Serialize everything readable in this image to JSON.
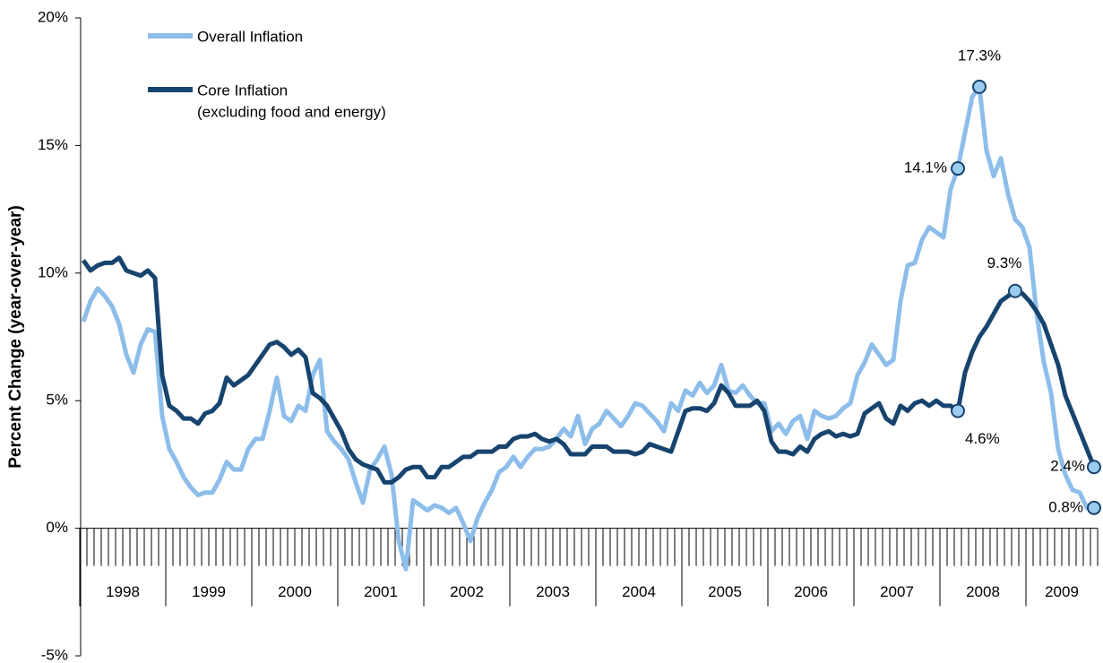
{
  "chart_data": {
    "type": "line",
    "y_label": "Percent Change (year-over-year)",
    "year_labels": [
      "1998",
      "1999",
      "2000",
      "2001",
      "2002",
      "2003",
      "2004",
      "2005",
      "2006",
      "2007",
      "2008",
      "2009"
    ],
    "ylim": [
      -5,
      20
    ],
    "yticks": [
      {
        "value": -5,
        "label": "-5%"
      },
      {
        "value": 0,
        "label": "0%"
      },
      {
        "value": 5,
        "label": "5%"
      },
      {
        "value": 10,
        "label": "10%"
      },
      {
        "value": 15,
        "label": "15%"
      },
      {
        "value": 20,
        "label": "20%"
      }
    ],
    "legend": "upper left",
    "series": [
      {
        "name": "Overall Inflation",
        "color": "#8dbdea",
        "values": [
          8.1,
          8.9,
          9.4,
          9.1,
          8.7,
          8.0,
          6.8,
          6.1,
          7.2,
          7.8,
          7.7,
          4.4,
          3.1,
          2.6,
          2.0,
          1.6,
          1.3,
          1.4,
          1.4,
          1.9,
          2.6,
          2.3,
          2.3,
          3.1,
          3.5,
          3.5,
          4.6,
          5.9,
          4.4,
          4.2,
          4.8,
          4.6,
          6.0,
          6.6,
          3.8,
          3.4,
          3.1,
          2.7,
          1.8,
          1.0,
          2.3,
          2.7,
          3.2,
          2.1,
          -0.5,
          -1.6,
          1.1,
          0.9,
          0.7,
          0.9,
          0.8,
          0.6,
          0.8,
          0.2,
          -0.5,
          0.4,
          1.0,
          1.5,
          2.2,
          2.4,
          2.8,
          2.4,
          2.8,
          3.1,
          3.1,
          3.2,
          3.5,
          3.9,
          3.6,
          4.4,
          3.3,
          3.9,
          4.1,
          4.6,
          4.3,
          4.0,
          4.4,
          4.9,
          4.8,
          4.5,
          4.2,
          3.8,
          4.9,
          4.6,
          5.4,
          5.2,
          5.7,
          5.3,
          5.6,
          6.4,
          5.4,
          5.3,
          5.6,
          5.2,
          4.9,
          4.9,
          3.8,
          4.1,
          3.7,
          4.2,
          4.4,
          3.5,
          4.6,
          4.4,
          4.3,
          4.4,
          4.7,
          4.9,
          6.0,
          6.5,
          7.2,
          6.8,
          6.4,
          6.6,
          8.9,
          10.3,
          10.4,
          11.3,
          11.8,
          11.6,
          11.4,
          13.3,
          14.1,
          15.5,
          16.9,
          17.3,
          14.8,
          13.8,
          14.5,
          13.1,
          12.1,
          11.8,
          11.0,
          8.4,
          6.5,
          5.3,
          3.1,
          2.1,
          1.5,
          1.4,
          0.8,
          0.8
        ],
        "value_labels": [
          null,
          null,
          null,
          null,
          null,
          null,
          null,
          null,
          null,
          null,
          null,
          null,
          null,
          null,
          null,
          null,
          null,
          null,
          null,
          null,
          null,
          null,
          null,
          null,
          null,
          null,
          null,
          null,
          null,
          null,
          null,
          null,
          null,
          null,
          null,
          null,
          null,
          null,
          null,
          null,
          null,
          null,
          null,
          null,
          null,
          null,
          null,
          null,
          null,
          null,
          null,
          null,
          null,
          null,
          null,
          null,
          null,
          null,
          null,
          null,
          null,
          null,
          null,
          null,
          null,
          null,
          null,
          null,
          null,
          null,
          null,
          null,
          null,
          null,
          null,
          null,
          null,
          null,
          null,
          null,
          null,
          null,
          null,
          null,
          null,
          null,
          null,
          null,
          null,
          null,
          null,
          null,
          null,
          null,
          null,
          null,
          null,
          null,
          null,
          null,
          null,
          null,
          null,
          null,
          null,
          null,
          null,
          null,
          null,
          null,
          null,
          null,
          null,
          null,
          null,
          null,
          null,
          null,
          null,
          null,
          null,
          null,
          "14.1%",
          null,
          null,
          "17.3%",
          null,
          null,
          null,
          null,
          null,
          null,
          null,
          null,
          null,
          null,
          null,
          null,
          null,
          null,
          null,
          "0.8%"
        ]
      },
      {
        "name": "Core Inflation",
        "legend_note": "(excluding food and energy)",
        "color": "#17446f",
        "values": [
          10.5,
          10.1,
          10.3,
          10.4,
          10.4,
          10.6,
          10.1,
          10.0,
          9.9,
          10.1,
          9.8,
          6.0,
          4.8,
          4.6,
          4.3,
          4.3,
          4.1,
          4.5,
          4.6,
          4.9,
          5.9,
          5.6,
          5.8,
          6.0,
          6.4,
          6.8,
          7.2,
          7.3,
          7.1,
          6.8,
          7.0,
          6.7,
          5.3,
          5.1,
          4.8,
          4.3,
          3.8,
          3.1,
          2.7,
          2.5,
          2.4,
          2.3,
          1.8,
          1.8,
          2.0,
          2.3,
          2.4,
          2.4,
          2.0,
          2.0,
          2.4,
          2.4,
          2.6,
          2.8,
          2.8,
          3.0,
          3.0,
          3.0,
          3.2,
          3.2,
          3.5,
          3.6,
          3.6,
          3.7,
          3.5,
          3.4,
          3.5,
          3.3,
          2.9,
          2.9,
          2.9,
          3.2,
          3.2,
          3.2,
          3.0,
          3.0,
          3.0,
          2.9,
          3.0,
          3.3,
          3.2,
          3.1,
          3.0,
          3.8,
          4.6,
          4.7,
          4.7,
          4.6,
          4.9,
          5.6,
          5.3,
          4.8,
          4.8,
          4.8,
          5.0,
          4.6,
          3.4,
          3.0,
          3.0,
          2.9,
          3.2,
          3.0,
          3.5,
          3.7,
          3.8,
          3.6,
          3.7,
          3.6,
          3.7,
          4.5,
          4.7,
          4.9,
          4.3,
          4.1,
          4.8,
          4.6,
          4.9,
          5.0,
          4.8,
          5.0,
          4.8,
          4.8,
          4.6,
          6.1,
          6.9,
          7.5,
          7.9,
          8.4,
          8.9,
          9.1,
          9.3,
          9.2,
          8.9,
          8.5,
          8.0,
          7.2,
          6.4,
          5.2,
          4.5,
          3.8,
          3.1,
          2.4
        ],
        "value_labels": [
          null,
          null,
          null,
          null,
          null,
          null,
          null,
          null,
          null,
          null,
          null,
          null,
          null,
          null,
          null,
          null,
          null,
          null,
          null,
          null,
          null,
          null,
          null,
          null,
          null,
          null,
          null,
          null,
          null,
          null,
          null,
          null,
          null,
          null,
          null,
          null,
          null,
          null,
          null,
          null,
          null,
          null,
          null,
          null,
          null,
          null,
          null,
          null,
          null,
          null,
          null,
          null,
          null,
          null,
          null,
          null,
          null,
          null,
          null,
          null,
          null,
          null,
          null,
          null,
          null,
          null,
          null,
          null,
          null,
          null,
          null,
          null,
          null,
          null,
          null,
          null,
          null,
          null,
          null,
          null,
          null,
          null,
          null,
          null,
          null,
          null,
          null,
          null,
          null,
          null,
          null,
          null,
          null,
          null,
          null,
          null,
          null,
          null,
          null,
          null,
          null,
          null,
          null,
          null,
          null,
          null,
          null,
          null,
          null,
          null,
          null,
          null,
          null,
          null,
          null,
          null,
          null,
          null,
          null,
          null,
          null,
          null,
          "4.6%",
          null,
          null,
          null,
          null,
          null,
          null,
          null,
          "9.3%",
          null,
          null,
          null,
          null,
          null,
          null,
          null,
          null,
          null,
          null,
          "2.4%"
        ]
      }
    ]
  }
}
